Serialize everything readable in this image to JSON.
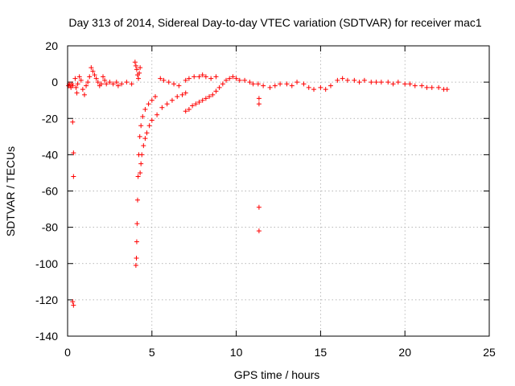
{
  "chart_data": {
    "type": "scatter",
    "title": "Day 313 of 2014, Sidereal Day-to-day VTEC variation (SDTVAR) for receiver mac1",
    "xlabel": "GPS time / hours",
    "ylabel": "SDTVAR / TECUs",
    "xlim": [
      0,
      25
    ],
    "ylim": [
      -140,
      20
    ],
    "xticks": [
      0,
      5,
      10,
      15,
      20,
      25
    ],
    "yticks": [
      -140,
      -120,
      -100,
      -80,
      -60,
      -40,
      -20,
      0,
      20
    ],
    "xtick_labels": [
      "0",
      "5",
      "10",
      "15",
      "20",
      "25"
    ],
    "ytick_labels": [
      "-140",
      "-120",
      "-100",
      "-80",
      "-60",
      "-40",
      "-20",
      "0",
      "20"
    ],
    "grid": true,
    "marker": "+",
    "color": "#ff0000",
    "series": [
      {
        "name": "mac1",
        "points": [
          [
            0.05,
            -2
          ],
          [
            0.1,
            -1
          ],
          [
            0.15,
            -2
          ],
          [
            0.2,
            -3
          ],
          [
            0.25,
            -1
          ],
          [
            0.3,
            -2
          ],
          [
            0.3,
            -22
          ],
          [
            0.35,
            -39
          ],
          [
            0.35,
            -52
          ],
          [
            0.3,
            -121
          ],
          [
            0.35,
            -123
          ],
          [
            0.45,
            2
          ],
          [
            0.5,
            -3
          ],
          [
            0.55,
            -6
          ],
          [
            0.6,
            -1
          ],
          [
            0.7,
            3
          ],
          [
            0.8,
            1
          ],
          [
            0.9,
            -4
          ],
          [
            1.0,
            -7
          ],
          [
            1.1,
            -2
          ],
          [
            1.2,
            0
          ],
          [
            1.3,
            3
          ],
          [
            1.4,
            8
          ],
          [
            1.5,
            6
          ],
          [
            1.6,
            4
          ],
          [
            1.7,
            2
          ],
          [
            1.8,
            0
          ],
          [
            1.9,
            -2
          ],
          [
            2.0,
            -1
          ],
          [
            2.1,
            3
          ],
          [
            2.2,
            1
          ],
          [
            2.3,
            -1
          ],
          [
            2.5,
            0
          ],
          [
            2.7,
            -1
          ],
          [
            2.9,
            0
          ],
          [
            3.0,
            -2
          ],
          [
            3.2,
            -1
          ],
          [
            3.5,
            0
          ],
          [
            3.8,
            -1
          ],
          [
            4.0,
            11
          ],
          [
            4.05,
            9
          ],
          [
            4.1,
            7
          ],
          [
            4.15,
            4
          ],
          [
            4.2,
            2
          ],
          [
            4.25,
            5
          ],
          [
            4.3,
            8
          ],
          [
            4.05,
            -101
          ],
          [
            4.08,
            -97
          ],
          [
            4.1,
            -88
          ],
          [
            4.12,
            -78
          ],
          [
            4.15,
            -65
          ],
          [
            4.18,
            -52
          ],
          [
            4.22,
            -40
          ],
          [
            4.28,
            -30
          ],
          [
            4.35,
            -24
          ],
          [
            4.45,
            -19
          ],
          [
            4.6,
            -15
          ],
          [
            4.8,
            -12
          ],
          [
            5.0,
            -10
          ],
          [
            5.2,
            -8
          ],
          [
            4.3,
            -50
          ],
          [
            4.35,
            -45
          ],
          [
            4.4,
            -40
          ],
          [
            4.5,
            -35
          ],
          [
            4.6,
            -31
          ],
          [
            4.7,
            -28
          ],
          [
            4.85,
            -24
          ],
          [
            5.0,
            -21
          ],
          [
            5.3,
            -18
          ],
          [
            5.6,
            -14
          ],
          [
            5.9,
            -12
          ],
          [
            6.2,
            -10
          ],
          [
            6.5,
            -8
          ],
          [
            6.8,
            -7
          ],
          [
            7.0,
            -6
          ],
          [
            5.5,
            2
          ],
          [
            5.7,
            1
          ],
          [
            6.0,
            0
          ],
          [
            6.3,
            -1
          ],
          [
            6.6,
            -2
          ],
          [
            7.0,
            1
          ],
          [
            7.2,
            2
          ],
          [
            7.5,
            3
          ],
          [
            7.8,
            3
          ],
          [
            8.0,
            4
          ],
          [
            8.2,
            3
          ],
          [
            8.5,
            2
          ],
          [
            8.8,
            3
          ],
          [
            7.0,
            -16
          ],
          [
            7.2,
            -15
          ],
          [
            7.4,
            -13
          ],
          [
            7.6,
            -12
          ],
          [
            7.8,
            -11
          ],
          [
            8.0,
            -10
          ],
          [
            8.2,
            -9
          ],
          [
            8.4,
            -8
          ],
          [
            8.6,
            -7
          ],
          [
            8.8,
            -5
          ],
          [
            9.0,
            -3
          ],
          [
            9.2,
            -1
          ],
          [
            9.4,
            1
          ],
          [
            9.6,
            2
          ],
          [
            9.8,
            3
          ],
          [
            10.0,
            2
          ],
          [
            10.2,
            1
          ],
          [
            10.5,
            1
          ],
          [
            10.8,
            0
          ],
          [
            11.0,
            -1
          ],
          [
            11.3,
            -1
          ],
          [
            11.35,
            -9
          ],
          [
            11.35,
            -12
          ],
          [
            11.35,
            -69
          ],
          [
            11.35,
            -82
          ],
          [
            11.6,
            -2
          ],
          [
            12.0,
            -3
          ],
          [
            12.3,
            -2
          ],
          [
            12.6,
            -1
          ],
          [
            13.0,
            -1
          ],
          [
            13.3,
            -2
          ],
          [
            13.6,
            0
          ],
          [
            14.0,
            -1
          ],
          [
            14.3,
            -3
          ],
          [
            14.6,
            -4
          ],
          [
            15.0,
            -3
          ],
          [
            15.3,
            -4
          ],
          [
            15.6,
            -2
          ],
          [
            16.0,
            1
          ],
          [
            16.3,
            2
          ],
          [
            16.6,
            1
          ],
          [
            17.0,
            1
          ],
          [
            17.3,
            0
          ],
          [
            17.6,
            1
          ],
          [
            18.0,
            0
          ],
          [
            18.3,
            0
          ],
          [
            18.6,
            0
          ],
          [
            19.0,
            0
          ],
          [
            19.3,
            -1
          ],
          [
            19.6,
            0
          ],
          [
            20.0,
            -1
          ],
          [
            20.3,
            -1
          ],
          [
            20.6,
            -2
          ],
          [
            21.0,
            -2
          ],
          [
            21.3,
            -3
          ],
          [
            21.6,
            -3
          ],
          [
            22.0,
            -3
          ],
          [
            22.3,
            -4
          ],
          [
            22.5,
            -4
          ]
        ]
      }
    ]
  }
}
